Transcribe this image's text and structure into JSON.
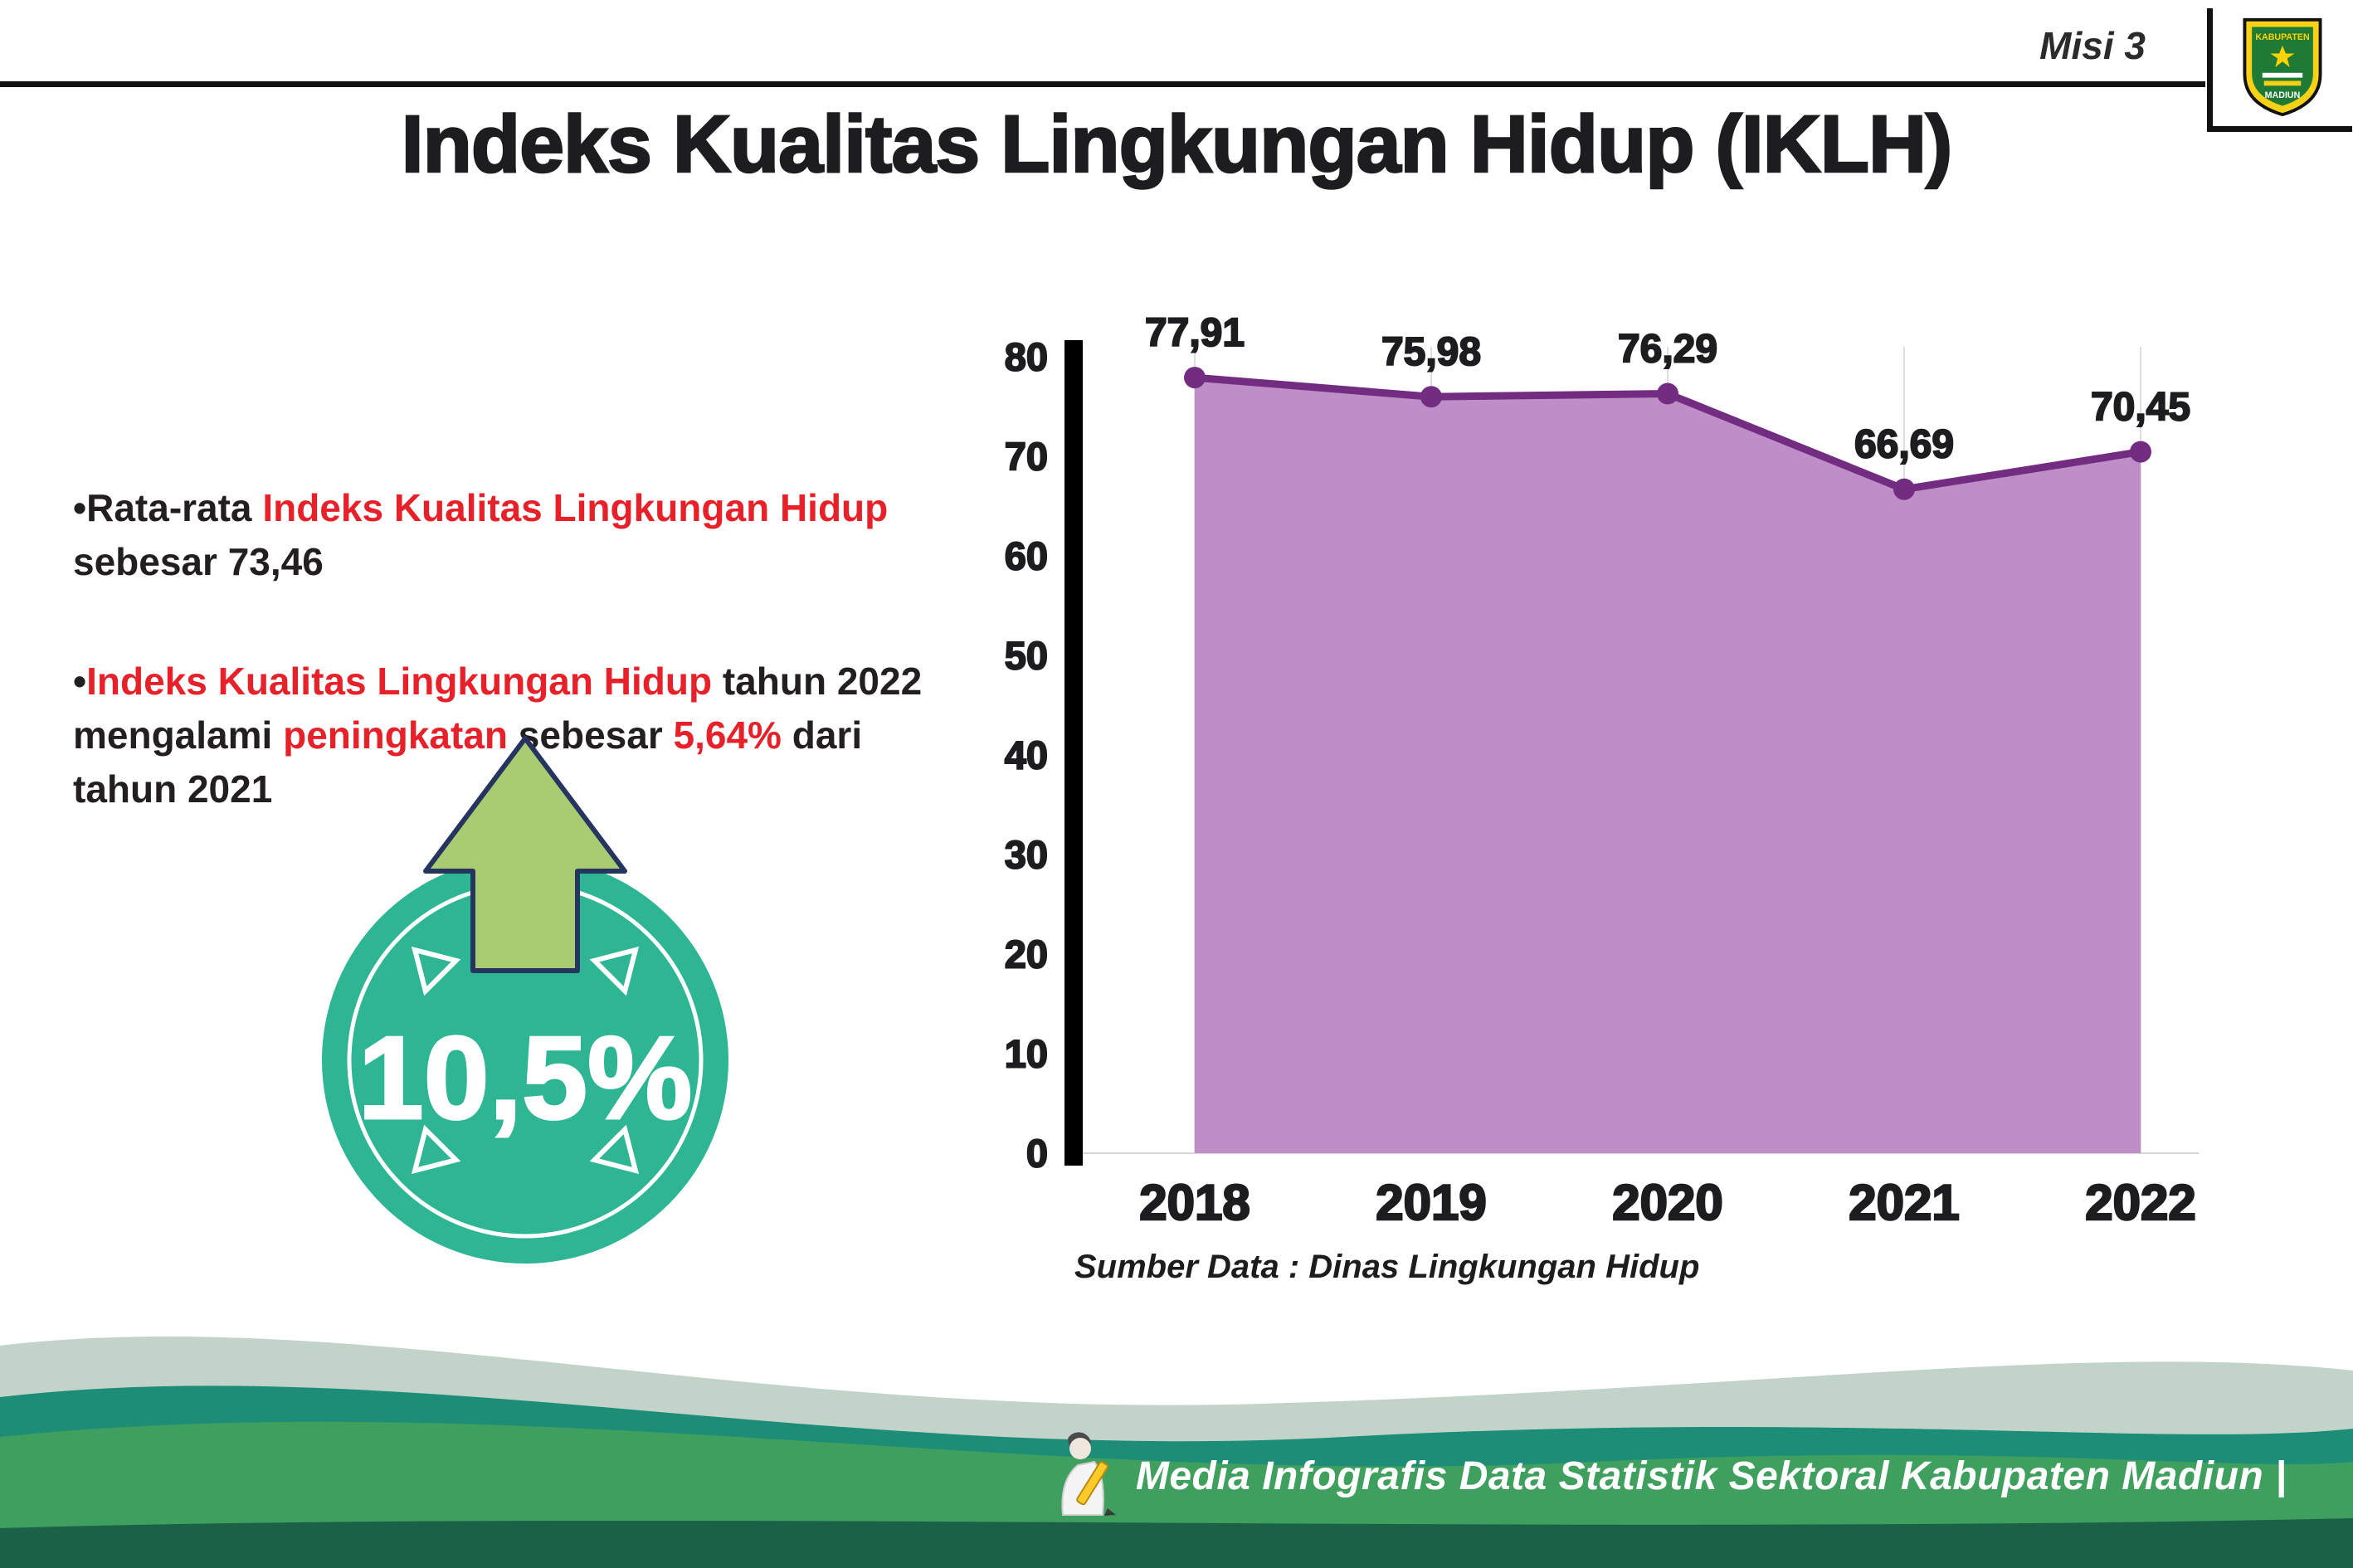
{
  "page": {
    "misi_label": "Misi 3",
    "title": "Indeks Kualitas Lingkungan Hidup (IKLH)"
  },
  "logo": {
    "name": "Logo Kabupaten Madiun",
    "line1": "KABUPATEN",
    "line2": "MADIUN"
  },
  "notes": {
    "marker": "•",
    "bullet1": {
      "segments": [
        {
          "text": "Rata-rata ",
          "red": false
        },
        {
          "text": "Indeks Kualitas Lingkungan Hidup",
          "red": true
        },
        {
          "text": " sebesar 73,46",
          "red": false
        }
      ]
    },
    "bullet2": {
      "segments": [
        {
          "text": "Indeks Kualitas Lingkungan Hidup",
          "red": true
        },
        {
          "text": " tahun 2022 mengalami ",
          "red": false
        },
        {
          "text": "peningkatan",
          "red": true
        },
        {
          "text": " sebesar ",
          "red": false
        },
        {
          "text": "5,64%",
          "red": true
        },
        {
          "text": " dari tahun 2021",
          "red": false
        }
      ]
    }
  },
  "badge": {
    "value": "10,5%",
    "circle_color": "#2eb593",
    "arrow_color": "#a8cc72"
  },
  "chart_data": {
    "type": "area",
    "title": "Indeks Kualitas Lingkungan Hidup (IKLH)",
    "categories": [
      "2018",
      "2019",
      "2020",
      "2021",
      "2022"
    ],
    "values": [
      77.91,
      75.98,
      76.29,
      66.69,
      70.45
    ],
    "value_labels": [
      "77,91",
      "75,98",
      "76,29",
      "66,69",
      "70,45"
    ],
    "ylim": [
      0,
      80
    ],
    "yticks": [
      0,
      10,
      20,
      30,
      40,
      50,
      60,
      70,
      80
    ],
    "grid": "faint-vertical",
    "legend": "none",
    "source": "Sumber Data : Dinas Lingkungan Hidup",
    "colors": {
      "area": "#bf8ec9",
      "line": "#722d80",
      "point": "#722d80"
    }
  },
  "footer": {
    "text": "Media Infografis Data Statistik Sektoral Kabupaten Madiun |"
  }
}
